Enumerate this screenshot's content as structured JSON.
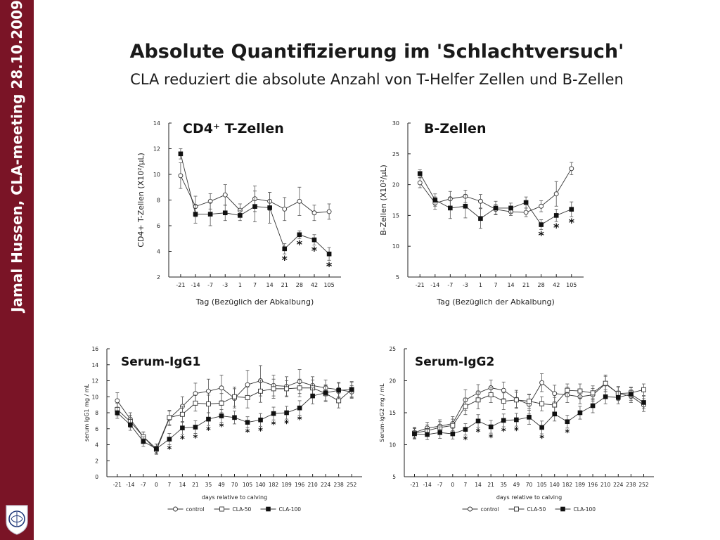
{
  "sidebar": {
    "text": "Jamal Hussen, CLA-meeting 28.10.2009"
  },
  "header": {
    "title": "Absolute Quantifizierung im 'Schlachtversuch'",
    "subtitle": "CLA  reduziert die absolute  Anzahl von  T-Helfer Zellen und B-Zellen"
  },
  "colors": {
    "sidebar": "#7a1426",
    "ink": "#1a1a1a"
  },
  "icons": {
    "seal": "university-seal-icon"
  },
  "chart_data": [
    {
      "type": "line",
      "title": "CD4⁺ T-Zellen",
      "xlabel": "Tag (Bezüglich der Abkalbung)",
      "ylabel": "CD4+ T-Zellen (X10²/µL)",
      "ylim": [
        2,
        14
      ],
      "yticks": [
        2,
        4,
        6,
        8,
        10,
        12,
        14
      ],
      "categories": [
        "-21",
        "-14",
        "-7",
        "-3",
        "1",
        "7",
        "14",
        "21",
        "28",
        "42",
        "105"
      ],
      "grid": false,
      "series": [
        {
          "marker": "open-circle",
          "values": [
            9.9,
            7.5,
            7.9,
            8.4,
            7.2,
            8.1,
            7.9,
            7.3,
            7.9,
            7.0,
            7.1
          ],
          "err": [
            1.0,
            0.8,
            0.6,
            0.8,
            0.5,
            1.0,
            0.7,
            0.9,
            1.1,
            0.6,
            0.6
          ]
        },
        {
          "marker": "filled-square",
          "values": [
            11.6,
            6.9,
            6.9,
            7.0,
            6.8,
            7.5,
            7.4,
            4.2,
            5.3,
            4.9,
            3.8
          ],
          "err": [
            0.4,
            0.7,
            0.9,
            0.6,
            0.4,
            1.2,
            1.2,
            0.4,
            0.3,
            0.4,
            0.5
          ]
        }
      ],
      "significance": {
        "marks": [
          "21",
          "28",
          "42",
          "105"
        ],
        "label": "*"
      }
    },
    {
      "type": "line",
      "title": "B-Zellen",
      "xlabel": "Tag (Bezüglich der Abkalbung)",
      "ylabel": "B-Zellen (X10²/µL)",
      "ylim": [
        5,
        30
      ],
      "yticks": [
        5,
        10,
        15,
        20,
        25,
        30
      ],
      "categories": [
        "-21",
        "-14",
        "-7",
        "-3",
        "1",
        "7",
        "14",
        "21",
        "28",
        "42",
        "105"
      ],
      "grid": false,
      "series": [
        {
          "marker": "open-circle",
          "values": [
            20.3,
            17.0,
            17.7,
            18.1,
            17.3,
            16.0,
            15.6,
            15.5,
            16.5,
            18.5,
            22.6
          ],
          "err": [
            0.8,
            1.0,
            1.2,
            1.0,
            1.1,
            0.8,
            0.6,
            0.7,
            0.9,
            2.0,
            1.0
          ]
        },
        {
          "marker": "filled-square",
          "values": [
            21.8,
            17.5,
            16.2,
            16.5,
            14.5,
            16.2,
            16.2,
            17.1,
            13.5,
            15.0,
            16.0
          ],
          "err": [
            0.6,
            1.0,
            1.7,
            1.9,
            1.6,
            1.1,
            0.8,
            0.9,
            0.8,
            1.0,
            1.2
          ]
        }
      ],
      "significance": {
        "marks": [
          "28",
          "42",
          "105"
        ],
        "label": "*"
      }
    },
    {
      "type": "line",
      "title": "Serum-IgG1",
      "xlabel": "days relative to calving",
      "ylabel": "serum IgG1 mg / mL",
      "ylim": [
        0,
        16
      ],
      "yticks": [
        0,
        2,
        4,
        6,
        8,
        10,
        12,
        14,
        16
      ],
      "categories": [
        "-21",
        "-14",
        "-7",
        "0",
        "7",
        "14",
        "21",
        "35",
        "49",
        "70",
        "105",
        "140",
        "182",
        "189",
        "196",
        "210",
        "224",
        "238",
        "252"
      ],
      "grid": false,
      "series": [
        {
          "name": "control",
          "marker": "open-circle",
          "values": [
            9.5,
            7.2,
            5.0,
            3.3,
            7.3,
            8.8,
            10.4,
            10.7,
            11.1,
            9.8,
            11.5,
            12.0,
            11.4,
            11.3,
            11.9,
            11.4,
            11.1,
            10.9,
            10.6
          ],
          "err": [
            1.0,
            0.8,
            0.6,
            0.5,
            0.9,
            1.2,
            1.3,
            1.5,
            1.6,
            1.2,
            1.8,
            1.9,
            1.3,
            1.2,
            1.5,
            1.1,
            1.0,
            0.9,
            0.8
          ]
        },
        {
          "name": "CLA-50",
          "marker": "open-square",
          "values": [
            8.4,
            6.9,
            5.0,
            3.5,
            7.4,
            7.8,
            9.2,
            9.1,
            9.2,
            10.0,
            9.9,
            10.7,
            11.0,
            11.0,
            11.1,
            11.1,
            10.4,
            9.5,
            10.9
          ],
          "err": [
            0.8,
            0.8,
            0.6,
            0.6,
            0.9,
            1.0,
            1.0,
            1.1,
            1.2,
            1.2,
            1.3,
            1.4,
            1.2,
            1.0,
            1.1,
            1.0,
            1.0,
            0.9,
            1.0
          ]
        },
        {
          "name": "CLA-100",
          "marker": "filled-square",
          "values": [
            8.0,
            6.5,
            4.4,
            3.5,
            4.7,
            6.1,
            6.2,
            7.2,
            7.6,
            7.4,
            6.8,
            7.1,
            7.9,
            8.0,
            8.6,
            10.1,
            10.5,
            10.8,
            10.9
          ],
          "err": [
            0.7,
            0.7,
            0.6,
            0.6,
            0.7,
            0.8,
            0.8,
            0.8,
            0.8,
            0.8,
            0.7,
            0.8,
            0.8,
            0.8,
            0.9,
            1.0,
            1.0,
            0.9,
            0.9
          ]
        }
      ],
      "significance": {
        "marks": [
          "7",
          "14",
          "21",
          "35",
          "49",
          "105",
          "140",
          "182",
          "189",
          "196"
        ],
        "label": "*"
      },
      "legend": "bottom-center"
    },
    {
      "type": "line",
      "title": "Serum-IgG2",
      "xlabel": "days relative to calving",
      "ylabel": "Serum-IgG2 mg / mL",
      "ylim": [
        5,
        25
      ],
      "yticks": [
        5,
        10,
        15,
        20,
        25
      ],
      "categories": [
        "-21",
        "-14",
        "-7",
        "0",
        "7",
        "14",
        "21",
        "35",
        "49",
        "70",
        "105",
        "140",
        "182",
        "189",
        "196",
        "210",
        "224",
        "238",
        "252"
      ],
      "grid": false,
      "series": [
        {
          "name": "control",
          "marker": "open-circle",
          "values": [
            11.9,
            12.6,
            12.9,
            13.3,
            17.0,
            18.1,
            18.9,
            18.5,
            17.1,
            16.3,
            19.7,
            18.0,
            17.8,
            17.5,
            17.8,
            19.5,
            18.0,
            17.6,
            16.2
          ],
          "err": [
            0.8,
            0.9,
            1.0,
            1.1,
            1.6,
            1.3,
            1.2,
            1.3,
            1.4,
            1.5,
            1.4,
            1.3,
            1.2,
            1.1,
            1.0,
            1.2,
            1.1,
            1.0,
            1.0
          ]
        },
        {
          "name": "CLA-50",
          "marker": "open-square",
          "values": [
            11.8,
            12.2,
            12.7,
            13.0,
            16.0,
            17.0,
            17.8,
            16.8,
            17.0,
            16.8,
            16.4,
            16.2,
            18.5,
            18.4,
            18.1,
            19.6,
            18.0,
            18.1,
            18.6
          ],
          "err": [
            0.8,
            0.9,
            0.9,
            1.0,
            1.3,
            1.4,
            1.2,
            1.3,
            1.2,
            1.1,
            1.1,
            1.2,
            1.0,
            1.1,
            1.1,
            1.3,
            1.0,
            0.9,
            0.9
          ]
        },
        {
          "name": "CLA-100",
          "marker": "filled-square",
          "values": [
            11.7,
            11.6,
            11.9,
            11.7,
            12.4,
            13.7,
            12.8,
            13.8,
            13.9,
            14.3,
            12.7,
            14.8,
            13.6,
            15.0,
            16.1,
            17.5,
            17.4,
            17.9,
            16.6
          ],
          "err": [
            0.8,
            0.8,
            0.9,
            0.8,
            0.9,
            1.0,
            1.0,
            1.0,
            1.0,
            1.1,
            1.0,
            1.1,
            1.0,
            1.0,
            1.1,
            1.1,
            1.0,
            1.0,
            1.0
          ]
        }
      ],
      "significance": {
        "marks": [
          "7",
          "14",
          "21",
          "35",
          "49",
          "105",
          "182"
        ],
        "label": "*"
      },
      "legend": "bottom-center"
    }
  ]
}
